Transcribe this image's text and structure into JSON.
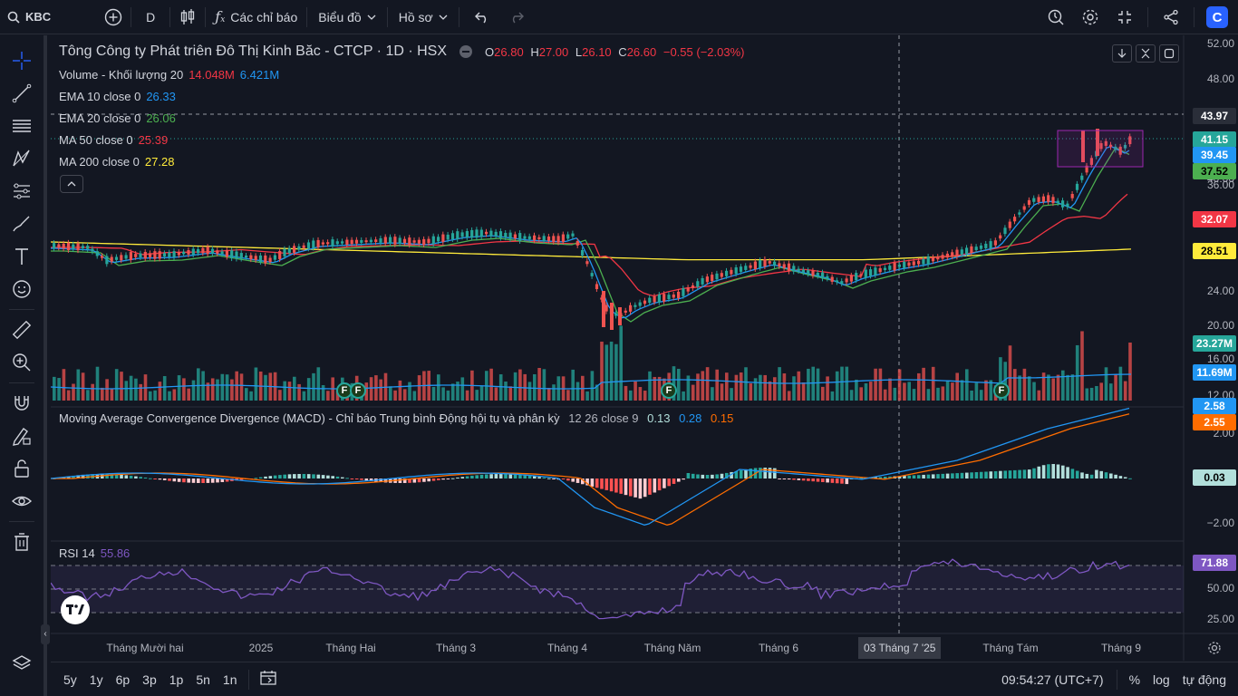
{
  "topbar": {
    "symbol": "KBC",
    "interval": "D",
    "indicators_label": "Các chỉ báo",
    "chart_label": "Biểu đồ",
    "profile_label": "Hồ sơ"
  },
  "header": {
    "title": "Tông Công ty Phát triên Đô Thị Kinh Băc - CTCP · 1D · HSX",
    "o_label": "O",
    "o": "26.80",
    "h_label": "H",
    "h": "27.00",
    "l_label": "L",
    "l": "26.10",
    "c_label": "C",
    "c": "26.60",
    "change": "−0.55 (−2.03%)"
  },
  "legend": {
    "volume": {
      "label": "Volume - Khối lượng 20",
      "v1": "14.048M",
      "v2": "6.421M"
    },
    "ema10": {
      "label": "EMA 10 close 0",
      "value": "26.33"
    },
    "ema20": {
      "label": "EMA 20 close 0",
      "value": "26.06"
    },
    "ma50": {
      "label": "MA 50 close 0",
      "value": "25.39"
    },
    "ma200": {
      "label": "MA 200 close 0",
      "value": "27.28"
    },
    "macd": {
      "label": "Moving Average Convergence Divergence (MACD) - Chỉ báo Trung bình Động hội tụ và phân kỳ",
      "params": "12 26 close 9",
      "v1": "0.13",
      "v2": "0.28",
      "v3": "0.15"
    },
    "rsi": {
      "label": "RSI 14",
      "value": "55.86"
    }
  },
  "price_axis": [
    "52.00",
    "48.00",
    "40.00",
    "36.00",
    "24.00",
    "20.00",
    "16.00",
    "12.00"
  ],
  "price_pills": [
    {
      "text": "43.97",
      "bg": "#2a2e39",
      "fg": "#ffffff",
      "top": 80
    },
    {
      "text": "41.15",
      "bg": "#26a69a",
      "fg": "#ffffff",
      "top": 106
    },
    {
      "text": "39.45",
      "bg": "#2196f3",
      "fg": "#ffffff",
      "top": 123
    },
    {
      "text": "37.52",
      "bg": "#4caf50",
      "fg": "#000000",
      "top": 141
    },
    {
      "text": "32.07",
      "bg": "#f23645",
      "fg": "#ffffff",
      "top": 194
    },
    {
      "text": "28.51",
      "bg": "#ffeb3b",
      "fg": "#000000",
      "top": 229
    },
    {
      "text": "23.27M",
      "bg": "#26a69a",
      "fg": "#ffffff",
      "top": 331
    },
    {
      "text": "11.69M",
      "bg": "#2196f3",
      "fg": "#ffffff",
      "top": 363
    }
  ],
  "macd_axis": [
    "2.00",
    "−2.00"
  ],
  "macd_pills": [
    {
      "text": "2.58",
      "bg": "#2196f3",
      "fg": "#ffffff",
      "top": 400
    },
    {
      "text": "2.55",
      "bg": "#ff6d00",
      "fg": "#ffffff",
      "top": 418
    },
    {
      "text": "0.03",
      "bg": "#b2dfdb",
      "fg": "#000000",
      "top": 479
    }
  ],
  "rsi_axis": [
    "50.00",
    "25.00"
  ],
  "rsi_pills": [
    {
      "text": "71.88",
      "bg": "#7e57c2",
      "fg": "#ffffff",
      "top": 573
    }
  ],
  "x_axis": [
    {
      "label": "Tháng Mười hai",
      "x": 104
    },
    {
      "label": "2025",
      "x": 232
    },
    {
      "label": "Tháng Hai",
      "x": 331
    },
    {
      "label": "Tháng 3",
      "x": 447
    },
    {
      "label": "Tháng 4",
      "x": 570
    },
    {
      "label": "Tháng Năm",
      "x": 686
    },
    {
      "label": "Tháng 6",
      "x": 803
    },
    {
      "label": "Tháng Tám",
      "x": 1059
    },
    {
      "label": "Tháng 9",
      "x": 1181
    }
  ],
  "crosshair_date": "03 Tháng 7 '25",
  "bottombar": {
    "ranges": [
      "5y",
      "1y",
      "6p",
      "3p",
      "1p",
      "5n",
      "1n"
    ],
    "time": "09:54:27 (UTC+7)",
    "percent": "%",
    "log": "log",
    "auto": "tự động"
  },
  "badge_text": "F",
  "colors": {
    "up": "#26a69a",
    "down": "#ef5350",
    "ema10": "#2196f3",
    "ema20": "#4caf50",
    "ma50": "#f23645",
    "ma200": "#ffeb3b",
    "rsi": "#7e57c2",
    "macd_line": "#2196f3",
    "signal_line": "#ff6d00"
  }
}
